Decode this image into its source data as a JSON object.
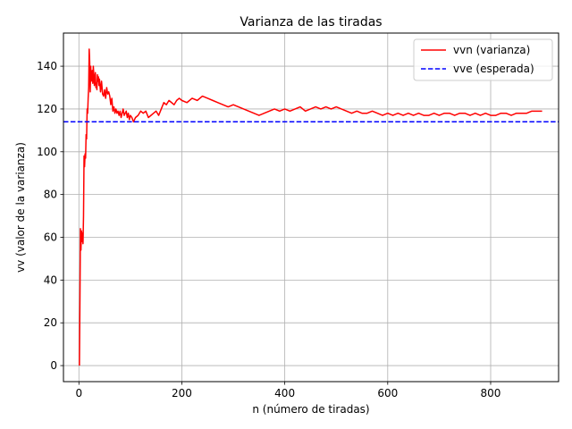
{
  "chart_data": {
    "type": "line",
    "title": "Varianza de las tiradas",
    "xlabel": "n (número de tiradas)",
    "ylabel": "vv (valor de la varianza)",
    "xlim": [
      -30,
      932
    ],
    "ylim": [
      -7.5,
      155.5
    ],
    "xticks": [
      0,
      200,
      400,
      600,
      800
    ],
    "yticks": [
      0,
      20,
      40,
      60,
      80,
      100,
      120,
      140
    ],
    "grid": true,
    "legend_position": "top-right",
    "series": [
      {
        "name": "vvn (varianza)",
        "color": "#ff0000",
        "style": "solid",
        "x": [
          1,
          2,
          3,
          4,
          5,
          6,
          7,
          8,
          9,
          10,
          11,
          12,
          13,
          14,
          15,
          16,
          17,
          18,
          19,
          20,
          21,
          22,
          23,
          24,
          25,
          26,
          27,
          28,
          29,
          30,
          31,
          32,
          33,
          34,
          35,
          36,
          37,
          38,
          39,
          40,
          42,
          44,
          46,
          48,
          50,
          52,
          54,
          56,
          58,
          60,
          62,
          64,
          66,
          68,
          70,
          72,
          74,
          76,
          78,
          80,
          82,
          84,
          86,
          88,
          90,
          92,
          94,
          96,
          98,
          100,
          103,
          106,
          110,
          115,
          120,
          125,
          130,
          135,
          140,
          145,
          150,
          155,
          160,
          165,
          170,
          175,
          180,
          185,
          190,
          195,
          200,
          210,
          220,
          230,
          240,
          250,
          260,
          270,
          280,
          290,
          300,
          310,
          320,
          330,
          340,
          350,
          360,
          370,
          380,
          390,
          400,
          410,
          420,
          430,
          440,
          450,
          460,
          470,
          480,
          490,
          500,
          510,
          520,
          530,
          540,
          550,
          560,
          570,
          580,
          590,
          600,
          610,
          620,
          630,
          640,
          650,
          660,
          670,
          680,
          690,
          700,
          710,
          720,
          730,
          740,
          750,
          760,
          770,
          780,
          790,
          800,
          810,
          820,
          830,
          840,
          850,
          860,
          870,
          880,
          890,
          900
        ],
        "y": [
          0,
          30,
          64,
          54,
          63,
          58,
          62,
          57,
          70,
          98,
          93,
          99,
          97,
          108,
          106,
          120,
          118,
          125,
          130,
          148,
          142,
          128,
          140,
          133,
          135,
          138,
          132,
          140,
          136,
          131,
          134,
          137,
          130,
          132,
          129,
          136,
          133,
          135,
          131,
          134,
          128,
          133,
          127,
          126,
          129,
          125,
          130,
          127,
          128,
          126,
          122,
          125,
          119,
          121,
          118,
          120,
          118,
          119,
          117,
          119,
          116,
          118,
          120,
          117,
          118,
          119,
          116,
          118,
          115,
          117,
          116,
          114,
          116,
          117,
          119,
          118,
          119,
          116,
          117,
          118,
          119,
          117,
          120,
          123,
          122,
          124,
          123,
          122,
          124,
          125,
          124,
          123,
          125,
          124,
          126,
          125,
          124,
          123,
          122,
          121,
          122,
          121,
          120,
          119,
          118,
          117,
          118,
          119,
          120,
          119,
          120,
          119,
          120,
          121,
          119,
          120,
          121,
          120,
          121,
          120,
          121,
          120,
          119,
          118,
          119,
          118,
          118,
          119,
          118,
          117,
          118,
          117,
          118,
          117,
          118,
          117,
          118,
          117,
          117,
          118,
          117,
          118,
          118,
          117,
          118,
          118,
          117,
          118,
          117,
          118,
          117,
          117,
          118,
          118,
          117,
          118,
          118,
          118,
          119,
          119,
          119
        ]
      },
      {
        "name": "vve (esperada)",
        "color": "#0000ff",
        "style": "dashed",
        "x": [
          -30,
          932
        ],
        "y": [
          114,
          114
        ]
      }
    ]
  }
}
